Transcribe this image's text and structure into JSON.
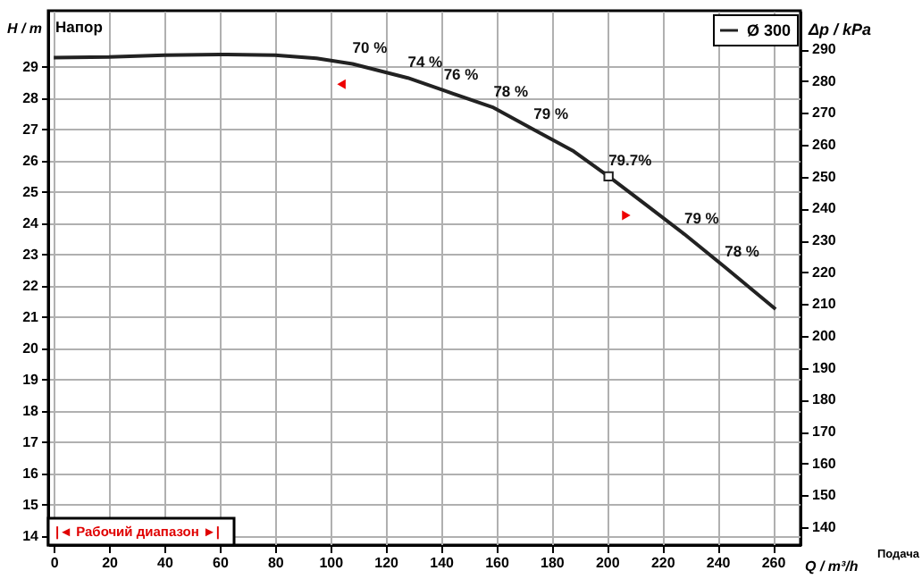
{
  "chart_data": {
    "type": "line",
    "xlabel": "Q / m³/h",
    "ylabel": "H / m",
    "y2label": "Δp / kPa",
    "xlim": [
      -2,
      270
    ],
    "xticks": [
      0,
      20,
      40,
      60,
      80,
      100,
      120,
      140,
      160,
      180,
      200,
      220,
      240,
      260
    ],
    "ylim": [
      13.7,
      30.8
    ],
    "yticks": [
      14,
      15,
      16,
      17,
      18,
      19,
      20,
      21,
      22,
      23,
      24,
      25,
      26,
      27,
      28,
      29
    ],
    "y2lim": [
      134.4,
      302.1
    ],
    "y2ticks": [
      140,
      150,
      160,
      170,
      180,
      190,
      200,
      210,
      220,
      230,
      240,
      250,
      260,
      270,
      280,
      290
    ],
    "grid": true,
    "legend": "top right",
    "line_style": "solid",
    "x": [
      0,
      20,
      40,
      60,
      80,
      95,
      108,
      128,
      141,
      159,
      173.5,
      188,
      200.6,
      214,
      228,
      242.6,
      261
    ],
    "series": [
      {
        "name": "Ø 300",
        "color": "#222222",
        "values": [
          29.3,
          29.32,
          29.38,
          29.4,
          29.38,
          29.28,
          29.1,
          28.65,
          28.25,
          27.7,
          27.0,
          26.3,
          25.5,
          24.6,
          23.65,
          22.6,
          21.25
        ]
      },
      {
        "type": "scatter",
        "marker": "square",
        "color": "#222222",
        "x": [
          200.6
        ],
        "values": [
          25.5
        ]
      },
      {
        "type": "scatter",
        "marker": "triangle",
        "color": "#ee0000",
        "x": [
          104,
          207
        ],
        "values": [
          28.45,
          24.25
        ]
      }
    ],
    "annotations": [
      "Напор",
      "Подача",
      "|◄ Рабочий диапазон ►|",
      {
        "text": "70 %",
        "x": 108,
        "y": 29.1
      },
      {
        "text": "74 %",
        "x": 128,
        "y": 28.65
      },
      {
        "text": "76 %",
        "x": 141,
        "y": 28.25
      },
      {
        "text": "78 %",
        "x": 159,
        "y": 27.7
      },
      {
        "text": "79 %",
        "x": 173.5,
        "y": 27.0
      },
      {
        "text": "79.7%",
        "x": 200.6,
        "y": 25.5
      },
      {
        "text": "79 %",
        "x": 228,
        "y": 23.65
      },
      {
        "text": "78 %",
        "x": 242.6,
        "y": 22.6
      }
    ]
  }
}
